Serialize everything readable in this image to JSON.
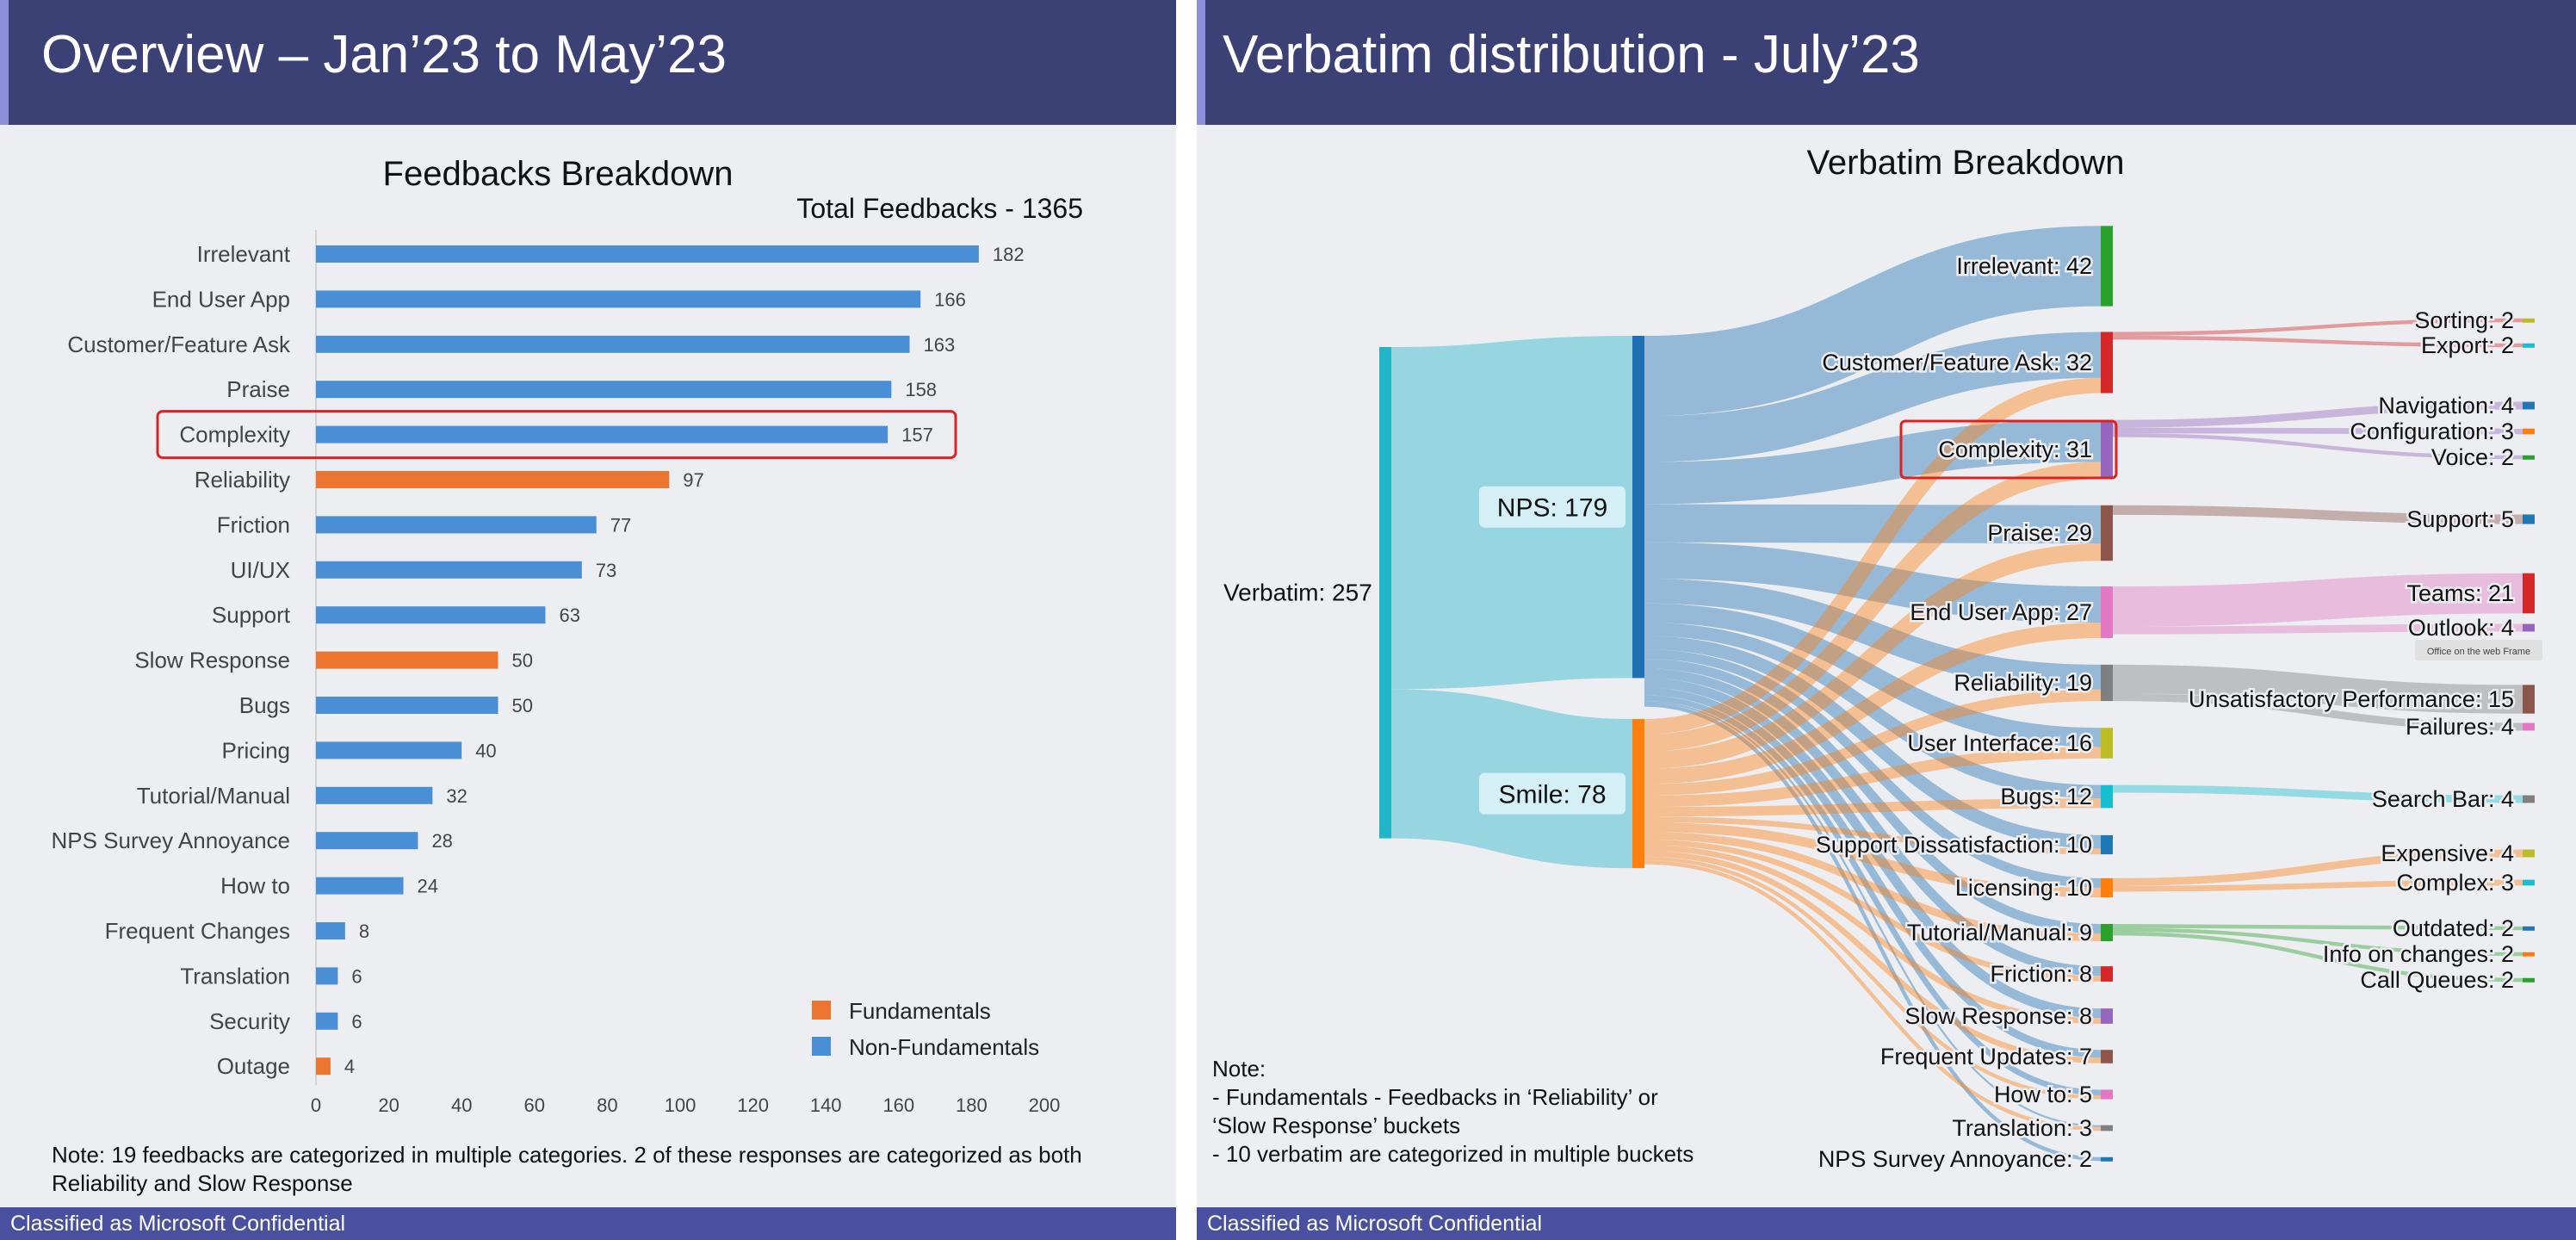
{
  "left_slide": {
    "title": "Overview – Jan’23 to May’23",
    "footer": "Classified as Microsoft Confidential",
    "note_label": "Note:",
    "note": " 19 feedbacks are categorized in multiple categories. 2 of these responses are categorized as both Reliability and Slow Response"
  },
  "right_slide": {
    "title": "Verbatim distribution - July’23",
    "footer": "Classified as Microsoft Confidential",
    "note_label": "Note:",
    "note_lines": [
      "- Fundamentals - Feedbacks in ‘Reliability’ or",
      "‘Slow Response’ buckets",
      "- 10 verbatim are categorized in multiple buckets"
    ],
    "frame_tooltip": "Office on the web Frame"
  },
  "colors": {
    "header": "#3b4175",
    "footer": "#4a50a0",
    "fundamentals": "#ec7630",
    "non_fundamentals": "#4a8fd6",
    "highlight": "#e02020"
  },
  "chart_data": [
    {
      "type": "bar",
      "orientation": "horizontal",
      "title": "Feedbacks Breakdown",
      "annotation": "Total Feedbacks - 1365",
      "categories": [
        "Irrelevant",
        "End User App",
        "Customer/Feature Ask",
        "Praise",
        "Complexity",
        "Reliability",
        "Friction",
        "UI/UX",
        "Support",
        "Slow Response",
        "Bugs",
        "Pricing",
        "Tutorial/Manual",
        "NPS Survey Annoyance",
        "How to",
        "Frequent Changes",
        "Translation",
        "Security",
        "Outage"
      ],
      "values": [
        182,
        166,
        163,
        158,
        157,
        97,
        77,
        73,
        63,
        50,
        50,
        40,
        32,
        28,
        24,
        8,
        6,
        6,
        4
      ],
      "groups": [
        "Non-Fundamentals",
        "Non-Fundamentals",
        "Non-Fundamentals",
        "Non-Fundamentals",
        "Non-Fundamentals",
        "Fundamentals",
        "Non-Fundamentals",
        "Non-Fundamentals",
        "Non-Fundamentals",
        "Fundamentals",
        "Non-Fundamentals",
        "Non-Fundamentals",
        "Non-Fundamentals",
        "Non-Fundamentals",
        "Non-Fundamentals",
        "Non-Fundamentals",
        "Non-Fundamentals",
        "Non-Fundamentals",
        "Fundamentals"
      ],
      "legend": [
        "Fundamentals",
        "Non-Fundamentals"
      ],
      "legend_position": "bottom-right",
      "x_ticks": [
        0,
        20,
        40,
        60,
        80,
        100,
        120,
        140,
        160,
        180,
        200
      ],
      "xlim": [
        0,
        200
      ],
      "highlighted_category": "Complexity"
    },
    {
      "type": "sankey",
      "title": "Verbatim Breakdown",
      "highlighted_node": "Complexity",
      "nodes": [
        {
          "id": "verbatim",
          "label": "Verbatim",
          "value": 257,
          "column": 0,
          "color": "#21b5c9"
        },
        {
          "id": "nps",
          "label": "NPS",
          "value": 179,
          "column": 1,
          "color": "#1f6fb5"
        },
        {
          "id": "smile",
          "label": "Smile",
          "value": 78,
          "column": 1,
          "color": "#ff7f0e"
        },
        {
          "id": "irrelevant",
          "label": "Irrelevant",
          "value": 42,
          "column": 2,
          "color": "#2ca02c"
        },
        {
          "id": "customer",
          "label": "Customer/Feature Ask",
          "value": 32,
          "column": 2,
          "color": "#d62728"
        },
        {
          "id": "complexity",
          "label": "Complexity",
          "value": 31,
          "column": 2,
          "color": "#9467bd"
        },
        {
          "id": "praise",
          "label": "Praise",
          "value": 29,
          "column": 2,
          "color": "#8c564b"
        },
        {
          "id": "enduser",
          "label": "End User App",
          "value": 27,
          "column": 2,
          "color": "#e377c2"
        },
        {
          "id": "reliability",
          "label": "Reliability",
          "value": 19,
          "column": 2,
          "color": "#7f7f7f"
        },
        {
          "id": "ui",
          "label": "User Interface",
          "value": 16,
          "column": 2,
          "color": "#bcbd22"
        },
        {
          "id": "bugs",
          "label": "Bugs",
          "value": 12,
          "column": 2,
          "color": "#17becf"
        },
        {
          "id": "supportd",
          "label": "Support Dissatisfaction",
          "value": 10,
          "column": 2,
          "color": "#1f77b4"
        },
        {
          "id": "licensing",
          "label": "Licensing",
          "value": 10,
          "column": 2,
          "color": "#ff7f0e"
        },
        {
          "id": "tutorial",
          "label": "Tutorial/Manual",
          "value": 9,
          "column": 2,
          "color": "#2ca02c"
        },
        {
          "id": "friction",
          "label": "Friction",
          "value": 8,
          "column": 2,
          "color": "#d62728"
        },
        {
          "id": "slowresp",
          "label": "Slow Response",
          "value": 8,
          "column": 2,
          "color": "#9467bd"
        },
        {
          "id": "frequent",
          "label": "Frequent Updates",
          "value": 7,
          "column": 2,
          "color": "#8c564b"
        },
        {
          "id": "howto",
          "label": "How to",
          "value": 5,
          "column": 2,
          "color": "#e377c2"
        },
        {
          "id": "translation",
          "label": "Translation",
          "value": 3,
          "column": 2,
          "color": "#7f7f7f"
        },
        {
          "id": "npsannoy",
          "label": "NPS Survey Annoyance",
          "value": 2,
          "column": 2,
          "color": "#1f77b4"
        },
        {
          "id": "sorting",
          "label": "Sorting",
          "value": 2,
          "column": 3,
          "color": "#bcbd22"
        },
        {
          "id": "export",
          "label": "Export",
          "value": 2,
          "column": 3,
          "color": "#17becf"
        },
        {
          "id": "navigation",
          "label": "Navigation",
          "value": 4,
          "column": 3,
          "color": "#1f77b4"
        },
        {
          "id": "configuration",
          "label": "Configuration",
          "value": 3,
          "column": 3,
          "color": "#ff7f0e"
        },
        {
          "id": "voice",
          "label": "Voice",
          "value": 2,
          "column": 3,
          "color": "#2ca02c"
        },
        {
          "id": "support",
          "label": "Support",
          "value": 5,
          "column": 3,
          "color": "#1f77b4"
        },
        {
          "id": "teams",
          "label": "Teams",
          "value": 21,
          "column": 3,
          "color": "#d62728"
        },
        {
          "id": "outlook",
          "label": "Outlook",
          "value": 4,
          "column": 3,
          "color": "#9467bd"
        },
        {
          "id": "unsat",
          "label": "Unsatisfactory Performance",
          "value": 15,
          "column": 3,
          "color": "#8c564b"
        },
        {
          "id": "failures",
          "label": "Failures",
          "value": 4,
          "column": 3,
          "color": "#e377c2"
        },
        {
          "id": "searchbar",
          "label": "Search Bar",
          "value": 4,
          "column": 3,
          "color": "#7f7f7f"
        },
        {
          "id": "expensive",
          "label": "Expensive",
          "value": 4,
          "column": 3,
          "color": "#bcbd22"
        },
        {
          "id": "complex",
          "label": "Complex",
          "value": 3,
          "column": 3,
          "color": "#17becf"
        },
        {
          "id": "outdated",
          "label": "Outdated",
          "value": 2,
          "column": 3,
          "color": "#1f77b4"
        },
        {
          "id": "infochanges",
          "label": "Info on changes",
          "value": 2,
          "column": 3,
          "color": "#ff7f0e"
        },
        {
          "id": "callqueues",
          "label": "Call Queues",
          "value": 2,
          "column": 3,
          "color": "#2ca02c"
        }
      ],
      "links": [
        {
          "source": "verbatim",
          "target": "nps",
          "value": 179
        },
        {
          "source": "verbatim",
          "target": "smile",
          "value": 78
        },
        {
          "source": "nps",
          "target": "irrelevant",
          "value": 42
        },
        {
          "source": "nps",
          "target": "customer",
          "value": 24
        },
        {
          "source": "nps",
          "target": "complexity",
          "value": 22
        },
        {
          "source": "nps",
          "target": "praise",
          "value": 20
        },
        {
          "source": "nps",
          "target": "enduser",
          "value": 19
        },
        {
          "source": "nps",
          "target": "reliability",
          "value": 13
        },
        {
          "source": "nps",
          "target": "ui",
          "value": 10
        },
        {
          "source": "nps",
          "target": "bugs",
          "value": 7
        },
        {
          "source": "nps",
          "target": "supportd",
          "value": 7
        },
        {
          "source": "nps",
          "target": "licensing",
          "value": 5
        },
        {
          "source": "nps",
          "target": "tutorial",
          "value": 5
        },
        {
          "source": "nps",
          "target": "friction",
          "value": 5
        },
        {
          "source": "nps",
          "target": "slowresp",
          "value": 5
        },
        {
          "source": "nps",
          "target": "frequent",
          "value": 4
        },
        {
          "source": "nps",
          "target": "howto",
          "value": 3
        },
        {
          "source": "nps",
          "target": "translation",
          "value": 1
        },
        {
          "source": "nps",
          "target": "npsannoy",
          "value": 2
        },
        {
          "source": "smile",
          "target": "customer",
          "value": 8
        },
        {
          "source": "smile",
          "target": "complexity",
          "value": 9
        },
        {
          "source": "smile",
          "target": "praise",
          "value": 9
        },
        {
          "source": "smile",
          "target": "enduser",
          "value": 8
        },
        {
          "source": "smile",
          "target": "reliability",
          "value": 6
        },
        {
          "source": "smile",
          "target": "ui",
          "value": 6
        },
        {
          "source": "smile",
          "target": "bugs",
          "value": 5
        },
        {
          "source": "smile",
          "target": "supportd",
          "value": 3
        },
        {
          "source": "smile",
          "target": "licensing",
          "value": 5
        },
        {
          "source": "smile",
          "target": "tutorial",
          "value": 4
        },
        {
          "source": "smile",
          "target": "friction",
          "value": 3
        },
        {
          "source": "smile",
          "target": "slowresp",
          "value": 3
        },
        {
          "source": "smile",
          "target": "frequent",
          "value": 3
        },
        {
          "source": "smile",
          "target": "howto",
          "value": 2
        },
        {
          "source": "smile",
          "target": "translation",
          "value": 2
        },
        {
          "source": "customer",
          "target": "sorting",
          "value": 2
        },
        {
          "source": "customer",
          "target": "export",
          "value": 2
        },
        {
          "source": "complexity",
          "target": "navigation",
          "value": 4
        },
        {
          "source": "complexity",
          "target": "configuration",
          "value": 3
        },
        {
          "source": "complexity",
          "target": "voice",
          "value": 2
        },
        {
          "source": "praise",
          "target": "support",
          "value": 5
        },
        {
          "source": "enduser",
          "target": "teams",
          "value": 21
        },
        {
          "source": "enduser",
          "target": "outlook",
          "value": 4
        },
        {
          "source": "reliability",
          "target": "unsat",
          "value": 15
        },
        {
          "source": "reliability",
          "target": "failures",
          "value": 4
        },
        {
          "source": "bugs",
          "target": "searchbar",
          "value": 4
        },
        {
          "source": "licensing",
          "target": "expensive",
          "value": 4
        },
        {
          "source": "licensing",
          "target": "complex",
          "value": 3
        },
        {
          "source": "tutorial",
          "target": "outdated",
          "value": 2
        },
        {
          "source": "tutorial",
          "target": "infochanges",
          "value": 2
        },
        {
          "source": "tutorial",
          "target": "callqueues",
          "value": 2
        }
      ]
    }
  ]
}
